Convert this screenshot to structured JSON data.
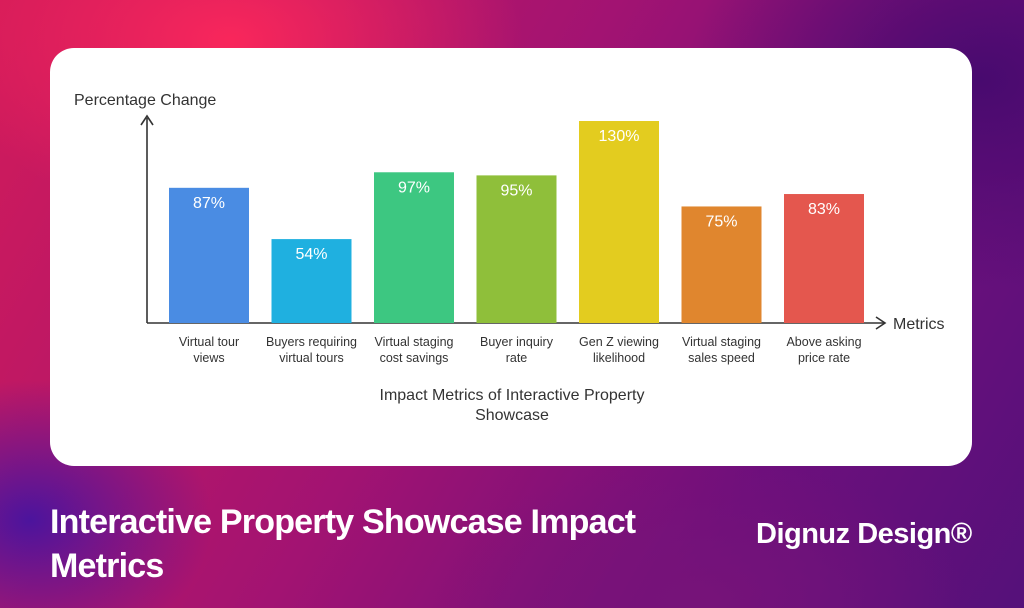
{
  "chart_data": {
    "type": "bar",
    "title": "Impact Metrics of Interactive Property Showcase",
    "xlabel": "Metrics",
    "ylabel": "Percentage Change",
    "ylim": [
      0,
      130
    ],
    "categories": [
      "Virtual tour views",
      "Buyers requiring virtual tours",
      "Virtual staging cost savings",
      "Buyer inquiry rate",
      "Gen Z viewing likelihood",
      "Virtual staging sales speed",
      "Above asking price rate"
    ],
    "category_lines": [
      [
        "Virtual tour",
        "views"
      ],
      [
        "Buyers requiring",
        "virtual tours"
      ],
      [
        "Virtual staging",
        "cost savings"
      ],
      [
        "Buyer inquiry",
        "rate"
      ],
      [
        "Gen Z viewing",
        "likelihood"
      ],
      [
        "Virtual staging",
        "sales speed"
      ],
      [
        "Above asking",
        "price rate"
      ]
    ],
    "title_lines": [
      "Impact Metrics of Interactive Property",
      "Showcase"
    ],
    "values": [
      87,
      54,
      97,
      95,
      130,
      75,
      83
    ],
    "value_labels": [
      "87%",
      "54%",
      "97%",
      "95%",
      "130%",
      "75%",
      "83%"
    ],
    "colors": [
      "#4a8ce3",
      "#1fb0e0",
      "#3dc781",
      "#8fbf3a",
      "#e3cc1f",
      "#e0862e",
      "#e4574e"
    ],
    "grid": false,
    "legend": "none"
  },
  "footer": {
    "title": "Interactive Property Showcase Impact Metrics",
    "brand": "Dignuz Design®"
  }
}
